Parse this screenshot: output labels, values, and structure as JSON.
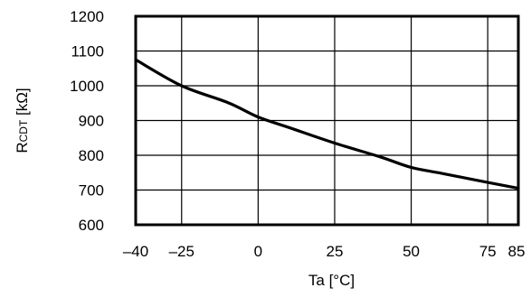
{
  "chart_data": {
    "type": "line",
    "title": "",
    "xlabel": "Ta [°C]",
    "ylabel": {
      "main": "R",
      "sub": "CDT",
      "unit": " [kΩ]"
    },
    "x_ticks": [
      {
        "value": -40,
        "label": "–40"
      },
      {
        "value": -25,
        "label": "–25"
      },
      {
        "value": 0,
        "label": "0"
      },
      {
        "value": 25,
        "label": "25"
      },
      {
        "value": 50,
        "label": "50"
      },
      {
        "value": 75,
        "label": "75"
      },
      {
        "value": 85,
        "label": "85"
      }
    ],
    "y_ticks": [
      {
        "value": 600,
        "label": "600"
      },
      {
        "value": 700,
        "label": "700"
      },
      {
        "value": 800,
        "label": "800"
      },
      {
        "value": 900,
        "label": "900"
      },
      {
        "value": 1000,
        "label": "1000"
      },
      {
        "value": 1100,
        "label": "1100"
      },
      {
        "value": 1200,
        "label": "1200"
      }
    ],
    "xlim": [
      -40,
      85
    ],
    "ylim": [
      600,
      1200
    ],
    "grid": true,
    "x_grid": [
      -25,
      0,
      25,
      50,
      75
    ],
    "y_grid": [
      700,
      800,
      900,
      1000,
      1100
    ],
    "series": [
      {
        "x": [
          -40,
          -25,
          -10,
          0,
          10,
          25,
          40,
          50,
          60,
          75,
          85
        ],
        "y": [
          1075,
          1000,
          952,
          910,
          880,
          835,
          795,
          765,
          748,
          722,
          705
        ]
      }
    ]
  }
}
